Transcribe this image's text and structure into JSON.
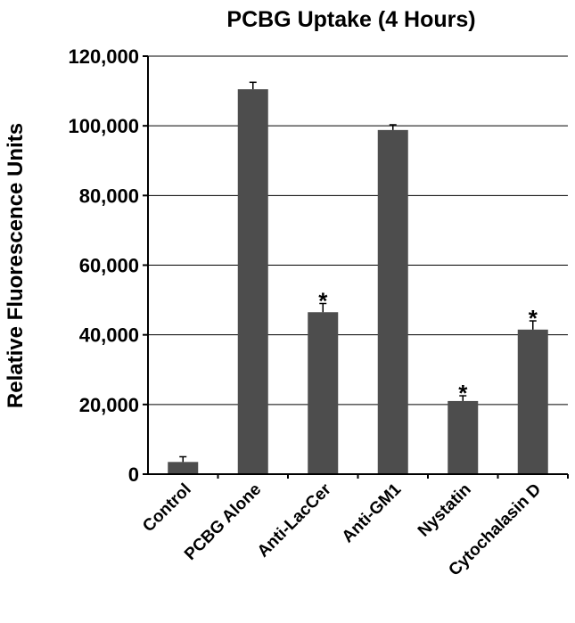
{
  "chart_data": {
    "type": "bar",
    "title": "PCBG Uptake (4 Hours)",
    "xlabel": "",
    "ylabel": "Relative Fluorescence Units",
    "categories": [
      "Control",
      "PCBG Alone",
      "Anti-LacCer",
      "Anti-GM1",
      "Nystatin",
      "Cytochalasin D"
    ],
    "values": [
      3500,
      110500,
      46500,
      98800,
      21000,
      41500
    ],
    "errors": [
      1500,
      2000,
      2500,
      1500,
      1500,
      2500
    ],
    "significance": [
      "",
      "",
      "*",
      "",
      "*",
      "*"
    ],
    "ylim": [
      0,
      120000
    ],
    "yticks": [
      0,
      20000,
      40000,
      60000,
      80000,
      100000,
      120000
    ],
    "ytick_labels": [
      "0",
      "20,000",
      "40,000",
      "60,000",
      "80,000",
      "100,000",
      "120,000"
    ],
    "grid": true,
    "bar_color": "#4d4d4d"
  }
}
